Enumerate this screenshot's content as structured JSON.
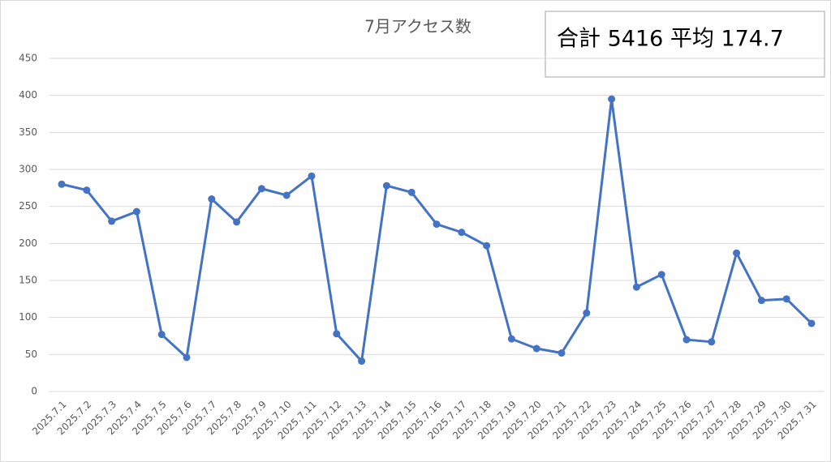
{
  "chart_data": {
    "type": "line",
    "title": "7月アクセス数",
    "annotation": "合計 5416 平均 174.7",
    "categories": [
      "2025.7.1",
      "2025.7.2",
      "2025.7.3",
      "2025.7.4",
      "2025.7.5",
      "2025.7.6",
      "2025.7.7",
      "2025.7.8",
      "2025.7.9",
      "2025.7.10",
      "2025.7.11",
      "2025.7.12",
      "2025.7.13",
      "2025.7.14",
      "2025.7.15",
      "2025.7.16",
      "2025.7.17",
      "2025.7.18",
      "2025.7.19",
      "2025.7.20",
      "2025.7.21",
      "2025.7.22",
      "2025.7.23",
      "2025.7.24",
      "2025.7.25",
      "2025.7.26",
      "2025.7.27",
      "2025.7.28",
      "2025.7.29",
      "2025.7.30",
      "2025.7.31"
    ],
    "values": [
      280,
      272,
      230,
      243,
      77,
      46,
      260,
      229,
      274,
      265,
      291,
      78,
      41,
      278,
      269,
      226,
      215,
      197,
      71,
      58,
      52,
      106,
      395,
      141,
      158,
      70,
      67,
      187,
      123,
      125,
      92
    ],
    "color": "#4472c4",
    "ylim": [
      0,
      450
    ],
    "yticks": [
      0,
      50,
      100,
      150,
      200,
      250,
      300,
      350,
      400,
      450
    ],
    "grid": true
  }
}
